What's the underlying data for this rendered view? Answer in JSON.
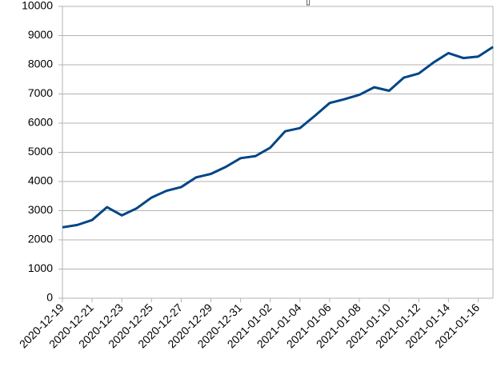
{
  "chart_data": {
    "type": "line",
    "title": "▯",
    "categories": [
      "2020-12-19",
      null,
      "2020-12-21",
      null,
      "2020-12-23",
      null,
      "2020-12-25",
      null,
      "2020-12-27",
      null,
      "2020-12-29",
      null,
      "2020-12-31",
      null,
      "2021-01-02",
      null,
      "2021-01-04",
      null,
      "2021-01-06",
      null,
      "2021-01-08",
      null,
      "2021-01-10",
      null,
      "2021-01-12",
      null,
      "2021-01-14",
      null,
      "2021-01-16",
      null
    ],
    "series": [
      {
        "color": "#004586",
        "values": [
          2430,
          2510,
          2680,
          3120,
          2840,
          3080,
          3450,
          3680,
          3810,
          4140,
          4260,
          4500,
          4800,
          4870,
          5160,
          5720,
          5830,
          6250,
          6690,
          6820,
          6970,
          7230,
          7110,
          7560,
          7700,
          8080,
          8400,
          8230,
          8280,
          8610
        ]
      }
    ],
    "ylim": [
      0,
      10000
    ],
    "yticks": [
      0,
      1000,
      2000,
      3000,
      4000,
      5000,
      6000,
      7000,
      8000,
      9000,
      10000
    ],
    "grid": true
  }
}
